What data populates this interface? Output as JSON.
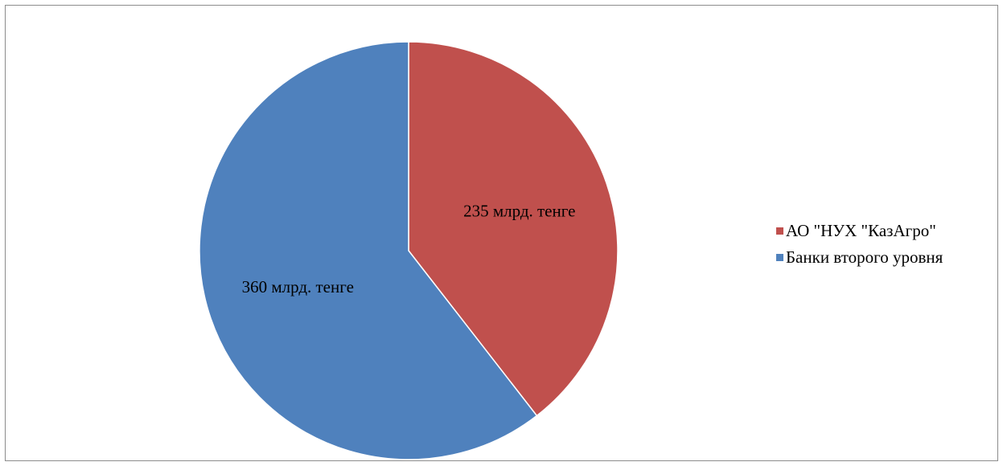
{
  "chart_data": {
    "type": "pie",
    "title": "",
    "series": [
      {
        "values": [
          235,
          360
        ],
        "value_labels": [
          "235 млрд. тенге",
          "360 млрд. тенге"
        ],
        "colors": [
          "#C0504D",
          "#4F81BD"
        ]
      }
    ],
    "categories": [
      "АО \"НУХ \"КазАгро\"",
      "Банки второго уровня"
    ],
    "legend": {
      "position": "right"
    },
    "start_angle_deg": 0,
    "direction": "clockwise"
  }
}
